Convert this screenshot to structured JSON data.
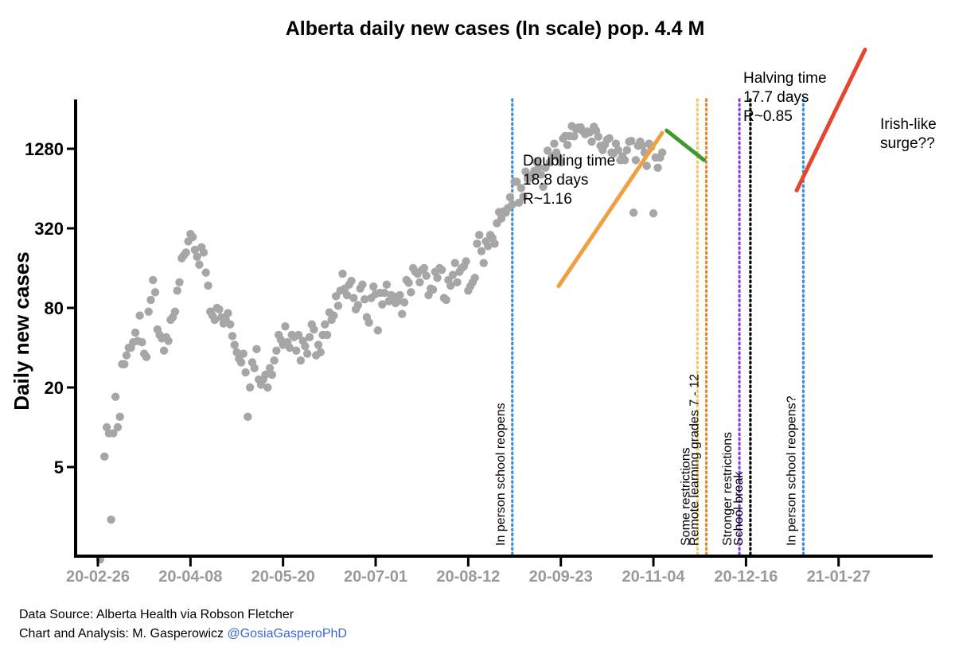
{
  "chart_data": {
    "type": "scatter",
    "title": "Alberta daily new cases (ln scale) pop. 4.4 M",
    "ylabel": "Daily new cases",
    "yscale": "log2",
    "ylim": [
      1,
      3200
    ],
    "yticks": [
      5,
      20,
      80,
      320,
      1280
    ],
    "xlim": [
      "2020-02-26",
      "2021-03-10"
    ],
    "xticks": [
      "20-02-26",
      "20-04-08",
      "20-05-20",
      "20-07-01",
      "20-08-12",
      "20-09-23",
      "20-11-04",
      "20-12-16",
      "21-01-27"
    ],
    "x_start": "2020-02-26",
    "points": [
      [
        1,
        1
      ],
      [
        3,
        6
      ],
      [
        4,
        10
      ],
      [
        5,
        9
      ],
      [
        6,
        2
      ],
      [
        7,
        9
      ],
      [
        8,
        17
      ],
      [
        9,
        10
      ],
      [
        10,
        12
      ],
      [
        11,
        30
      ],
      [
        12,
        30
      ],
      [
        13,
        35
      ],
      [
        14,
        40
      ],
      [
        15,
        40
      ],
      [
        16,
        44
      ],
      [
        17,
        52
      ],
      [
        18,
        45
      ],
      [
        19,
        70
      ],
      [
        20,
        44
      ],
      [
        21,
        36
      ],
      [
        22,
        34
      ],
      [
        23,
        75
      ],
      [
        24,
        92
      ],
      [
        25,
        130
      ],
      [
        26,
        105
      ],
      [
        27,
        55
      ],
      [
        28,
        50
      ],
      [
        29,
        47
      ],
      [
        30,
        38
      ],
      [
        31,
        48
      ],
      [
        32,
        45
      ],
      [
        33,
        65
      ],
      [
        34,
        68
      ],
      [
        35,
        75
      ],
      [
        36,
        108
      ],
      [
        37,
        125
      ],
      [
        38,
        190
      ],
      [
        39,
        200
      ],
      [
        40,
        210
      ],
      [
        41,
        255
      ],
      [
        42,
        290
      ],
      [
        43,
        275
      ],
      [
        44,
        220
      ],
      [
        45,
        195
      ],
      [
        46,
        170
      ],
      [
        47,
        230
      ],
      [
        48,
        210
      ],
      [
        49,
        148
      ],
      [
        50,
        118
      ],
      [
        51,
        75
      ],
      [
        52,
        70
      ],
      [
        53,
        65
      ],
      [
        54,
        80
      ],
      [
        55,
        78
      ],
      [
        56,
        68
      ],
      [
        57,
        61
      ],
      [
        58,
        65
      ],
      [
        59,
        73
      ],
      [
        60,
        60
      ],
      [
        61,
        49
      ],
      [
        62,
        42
      ],
      [
        63,
        37
      ],
      [
        64,
        33
      ],
      [
        65,
        31
      ],
      [
        66,
        36
      ],
      [
        67,
        26
      ],
      [
        68,
        12
      ],
      [
        69,
        20
      ],
      [
        70,
        31
      ],
      [
        71,
        28
      ],
      [
        72,
        39
      ],
      [
        73,
        23
      ],
      [
        74,
        21
      ],
      [
        75,
        23
      ],
      [
        76,
        25
      ],
      [
        77,
        20
      ],
      [
        78,
        28
      ],
      [
        79,
        25
      ],
      [
        80,
        32
      ],
      [
        81,
        38
      ],
      [
        82,
        50
      ],
      [
        83,
        46
      ],
      [
        84,
        42
      ],
      [
        85,
        58
      ],
      [
        86,
        44
      ],
      [
        87,
        40
      ],
      [
        88,
        50
      ],
      [
        89,
        48
      ],
      [
        90,
        38
      ],
      [
        91,
        50
      ],
      [
        92,
        32
      ],
      [
        93,
        45
      ],
      [
        94,
        41
      ],
      [
        95,
        36
      ],
      [
        96,
        48
      ],
      [
        97,
        60
      ],
      [
        98,
        55
      ],
      [
        99,
        35
      ],
      [
        100,
        42
      ],
      [
        101,
        37
      ],
      [
        102,
        50
      ],
      [
        103,
        60
      ],
      [
        104,
        50
      ],
      [
        105,
        74
      ],
      [
        106,
        65
      ],
      [
        107,
        70
      ],
      [
        108,
        98
      ],
      [
        109,
        83
      ],
      [
        110,
        108
      ],
      [
        111,
        145
      ],
      [
        112,
        112
      ],
      [
        113,
        100
      ],
      [
        114,
        120
      ],
      [
        115,
        128
      ],
      [
        116,
        95
      ],
      [
        117,
        78
      ],
      [
        118,
        84
      ],
      [
        119,
        112
      ],
      [
        120,
        120
      ],
      [
        121,
        93
      ],
      [
        122,
        68
      ],
      [
        123,
        62
      ],
      [
        124,
        95
      ],
      [
        125,
        116
      ],
      [
        126,
        102
      ],
      [
        127,
        54
      ],
      [
        128,
        104
      ],
      [
        129,
        85
      ],
      [
        130,
        104
      ],
      [
        131,
        120
      ],
      [
        132,
        90
      ],
      [
        133,
        100
      ],
      [
        134,
        98
      ],
      [
        135,
        87
      ],
      [
        136,
        90
      ],
      [
        137,
        100
      ],
      [
        138,
        72
      ],
      [
        139,
        88
      ],
      [
        140,
        130
      ],
      [
        141,
        124
      ],
      [
        142,
        105
      ],
      [
        143,
        160
      ],
      [
        144,
        150
      ],
      [
        145,
        145
      ],
      [
        146,
        125
      ],
      [
        147,
        155
      ],
      [
        148,
        160
      ],
      [
        149,
        140
      ],
      [
        150,
        100
      ],
      [
        151,
        112
      ],
      [
        152,
        110
      ],
      [
        153,
        150
      ],
      [
        154,
        135
      ],
      [
        155,
        160
      ],
      [
        156,
        155
      ],
      [
        157,
        95
      ],
      [
        158,
        92
      ],
      [
        159,
        130
      ],
      [
        160,
        118
      ],
      [
        161,
        142
      ],
      [
        162,
        175
      ],
      [
        163,
        125
      ],
      [
        164,
        150
      ],
      [
        165,
        160
      ],
      [
        166,
        165
      ],
      [
        167,
        180
      ],
      [
        168,
        108
      ],
      [
        169,
        117
      ],
      [
        170,
        125
      ],
      [
        171,
        135
      ],
      [
        172,
        245
      ],
      [
        173,
        285
      ],
      [
        174,
        215
      ],
      [
        175,
        175
      ],
      [
        176,
        255
      ],
      [
        177,
        235
      ],
      [
        178,
        285
      ],
      [
        179,
        270
      ],
      [
        180,
        245
      ],
      [
        181,
        350
      ],
      [
        182,
        425
      ],
      [
        183,
        380
      ],
      [
        184,
        430
      ],
      [
        185,
        420
      ],
      [
        186,
        455
      ],
      [
        187,
        550
      ],
      [
        188,
        485
      ],
      [
        189,
        720
      ],
      [
        190,
        720
      ],
      [
        191,
        500
      ],
      [
        192,
        645
      ],
      [
        193,
        555
      ],
      [
        194,
        860
      ],
      [
        195,
        755
      ],
      [
        196,
        795
      ],
      [
        197,
        785
      ],
      [
        198,
        870
      ],
      [
        199,
        1020
      ],
      [
        200,
        930
      ],
      [
        201,
        815
      ],
      [
        202,
        660
      ],
      [
        203,
        920
      ],
      [
        204,
        1240
      ],
      [
        205,
        1010
      ],
      [
        206,
        1120
      ],
      [
        207,
        1400
      ],
      [
        208,
        1200
      ],
      [
        209,
        1100
      ],
      [
        210,
        1010
      ],
      [
        211,
        1530
      ],
      [
        212,
        1600
      ],
      [
        213,
        1370
      ],
      [
        214,
        1600
      ],
      [
        215,
        1900
      ],
      [
        216,
        1590
      ],
      [
        217,
        1800
      ],
      [
        218,
        1850
      ],
      [
        219,
        1860
      ],
      [
        220,
        1740
      ],
      [
        221,
        1650
      ],
      [
        222,
        1730
      ],
      [
        223,
        1700
      ],
      [
        224,
        1450
      ],
      [
        225,
        1880
      ],
      [
        226,
        1750
      ],
      [
        227,
        1580
      ],
      [
        228,
        1350
      ],
      [
        229,
        1250
      ],
      [
        230,
        1380
      ],
      [
        231,
        1500
      ],
      [
        232,
        1540
      ],
      [
        233,
        1200
      ],
      [
        234,
        1180
      ],
      [
        235,
        1400
      ],
      [
        236,
        1250
      ],
      [
        237,
        1050
      ],
      [
        238,
        1120
      ],
      [
        239,
        1050
      ],
      [
        240,
        1250
      ],
      [
        241,
        1450
      ],
      [
        242,
        1470
      ],
      [
        243,
        420
      ],
      [
        244,
        1050
      ],
      [
        245,
        1350
      ],
      [
        246,
        1450
      ],
      [
        247,
        1350
      ],
      [
        248,
        1200
      ],
      [
        249,
        950
      ],
      [
        250,
        1400
      ],
      [
        251,
        1320
      ],
      [
        252,
        415
      ],
      [
        253,
        1100
      ],
      [
        254,
        920
      ],
      [
        255,
        1100
      ],
      [
        256,
        1200
      ]
    ],
    "fit_lines": [
      {
        "name": "doubling",
        "color": "#f0a040",
        "from": [
          209,
          117
        ],
        "to": [
          256,
          1690
        ],
        "label": [
          "Doubling time",
          "18.8 days",
          "R~1.16"
        ]
      },
      {
        "name": "halving",
        "color": "#3f9a2c",
        "from": [
          258,
          1760
        ],
        "to": [
          275,
          1050
        ],
        "label": [
          "Halving time",
          "17.7 days",
          "R~0.85"
        ]
      },
      {
        "name": "surge",
        "color": "#e8452f",
        "from": [
          317,
          620
        ],
        "to": [
          348,
          7200
        ],
        "label": [
          "Irish-like",
          "surge??"
        ]
      }
    ],
    "events": [
      {
        "date": "2020-09-01",
        "label": "In person school reopens",
        "color": "#3b8fe6"
      },
      {
        "date": "2020-11-24",
        "label": "Some restrictions",
        "color": "#f3c96b"
      },
      {
        "date": "2020-11-28",
        "label": "Remote learning grades 7 - 12",
        "color": "#e68a2e"
      },
      {
        "date": "2020-12-13",
        "label": "Stronger restrictions",
        "color": "#8a3fe0"
      },
      {
        "date": "2020-12-18",
        "label": "School break",
        "color": "#000000"
      },
      {
        "date": "2021-01-11",
        "label": "In person school reopens?",
        "color": "#3b8fe6"
      }
    ],
    "marker_color": "#a6a6a6"
  },
  "footer": {
    "source": "Data Source: Alberta Health via Robson Fletcher",
    "analysis": "Chart and Analysis: M. Gasperowicz",
    "handle": "@GosiaGasperoPhD"
  }
}
